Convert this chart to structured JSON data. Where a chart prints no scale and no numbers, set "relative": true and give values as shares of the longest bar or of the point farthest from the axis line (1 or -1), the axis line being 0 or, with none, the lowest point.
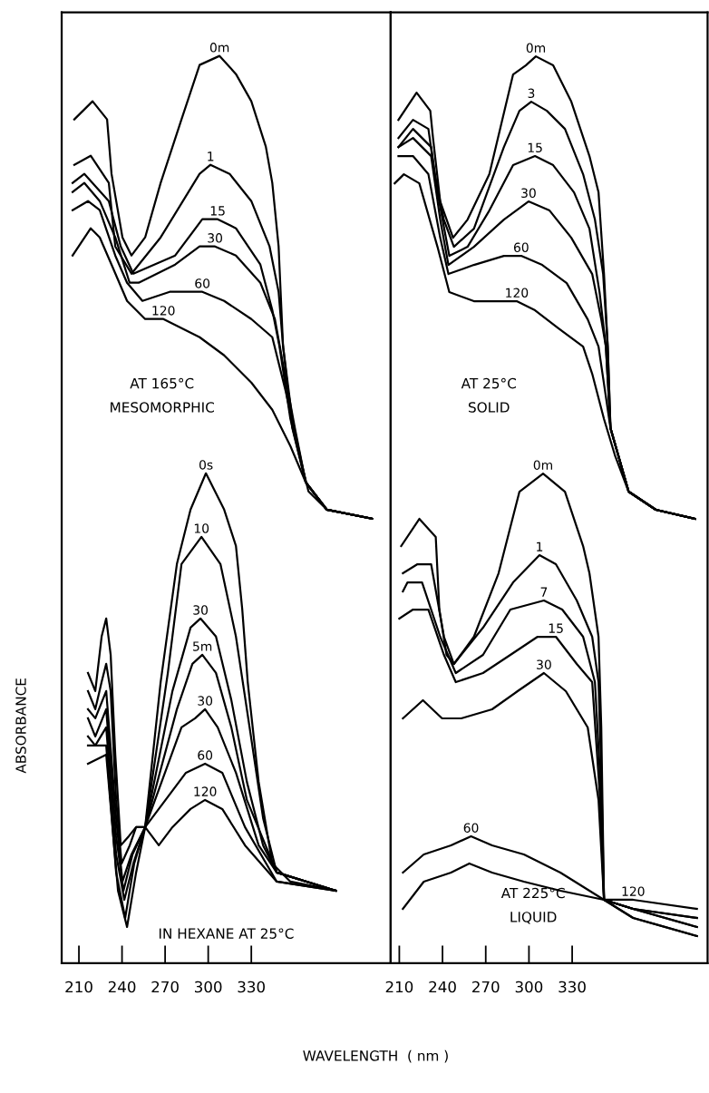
{
  "chart_data": [
    {
      "type": "line",
      "relative": true,
      "ylabel": "ABSORBANCE",
      "xlabel": "WAVELENGTH  ( nm )",
      "xlim": [
        198,
        427
      ],
      "xticks": [
        210,
        240,
        270,
        300,
        330
      ],
      "annotations": [
        "AT 165°C\nMESOMORPHIC",
        "IN HEXANE AT 25°C"
      ],
      "series": [
        {
          "name": "0m",
          "color": "#000000",
          "x": [
            206.8,
            219.5,
            229.6,
            232.7,
            240.3,
            246.6,
            256.1,
            266.9,
            281.4,
            294.0,
            307.9,
            319.3,
            330.0,
            340.1,
            344.6,
            349.0,
            352.1,
            358.5,
            367.9,
            382.5,
            414.0
          ],
          "values": [
            0.93,
            0.95,
            0.93,
            0.87,
            0.8,
            0.78,
            0.8,
            0.86,
            0.93,
            0.99,
            1.0,
            0.98,
            0.95,
            0.9,
            0.86,
            0.79,
            0.68,
            0.6,
            0.53,
            0.5,
            0.49
          ]
        },
        {
          "name": "1",
          "color": "#000000",
          "x": [
            206.8,
            218.2,
            230.8,
            235.3,
            246.6,
            266.9,
            294.0,
            301.6,
            314.9,
            330.0,
            342.7,
            349.0,
            352.1,
            358.5,
            367.9,
            382.5,
            414.0
          ],
          "values": [
            0.88,
            0.89,
            0.86,
            0.79,
            0.76,
            0.8,
            0.87,
            0.88,
            0.87,
            0.84,
            0.79,
            0.74,
            0.68,
            0.59,
            0.53,
            0.5,
            0.49
          ]
        },
        {
          "name": "15",
          "color": "#000000",
          "x": [
            205.6,
            213.8,
            230.8,
            239.1,
            247.9,
            277.0,
            295.9,
            306.6,
            319.3,
            336.3,
            344.6,
            349.6,
            357.2,
            367.9,
            382.5,
            414.0
          ],
          "values": [
            0.86,
            0.87,
            0.84,
            0.79,
            0.76,
            0.78,
            0.82,
            0.82,
            0.81,
            0.77,
            0.72,
            0.68,
            0.6,
            0.53,
            0.5,
            0.49
          ]
        },
        {
          "name": "30",
          "color": "#000000",
          "x": [
            205.6,
            213.8,
            224.5,
            235.3,
            245.3,
            251.6,
            277.0,
            294.0,
            304.7,
            319.3,
            336.3,
            346.4,
            352.1,
            360.3,
            367.9,
            382.5,
            414.0
          ],
          "values": [
            0.85,
            0.86,
            0.84,
            0.8,
            0.75,
            0.75,
            0.77,
            0.79,
            0.79,
            0.78,
            0.75,
            0.71,
            0.66,
            0.59,
            0.53,
            0.5,
            0.49
          ]
        },
        {
          "name": "60",
          "color": "#000000",
          "x": [
            205.6,
            216.3,
            224.5,
            235.3,
            243.5,
            254.2,
            273.2,
            295.9,
            311.1,
            330.0,
            344.6,
            354.0,
            363.5,
            369.8,
            382.5,
            414.0
          ],
          "values": [
            0.83,
            0.84,
            0.83,
            0.78,
            0.75,
            0.73,
            0.74,
            0.74,
            0.73,
            0.71,
            0.69,
            0.63,
            0.56,
            0.52,
            0.5,
            0.49
          ]
        },
        {
          "name": "120",
          "color": "#000000",
          "x": [
            205.6,
            218.2,
            224.5,
            232.7,
            243.5,
            256.1,
            268.8,
            294.0,
            311.1,
            330.0,
            344.6,
            357.2,
            367.9,
            382.5,
            414.0
          ],
          "values": [
            0.78,
            0.81,
            0.8,
            0.77,
            0.73,
            0.71,
            0.71,
            0.69,
            0.67,
            0.64,
            0.61,
            0.57,
            0.53,
            0.5,
            0.49
          ]
        },
        {
          "name": "0s",
          "color": "#000000",
          "x": [
            216.3,
            221.4,
            225.8,
            229.0,
            232.1,
            235.3,
            239.1,
            244.7,
            249.8,
            256.1,
            266.9,
            278.2,
            287.7,
            298.4,
            311.1,
            319.3,
            323.7,
            327.5,
            335.1,
            344.6,
            357.2,
            388.8
          ],
          "values": [
            0.32,
            0.3,
            0.36,
            0.38,
            0.34,
            0.23,
            0.13,
            0.14,
            0.15,
            0.15,
            0.31,
            0.44,
            0.5,
            0.54,
            0.5,
            0.46,
            0.39,
            0.31,
            0.2,
            0.11,
            0.09,
            0.08
          ]
        },
        {
          "name": "10",
          "color": "#000000",
          "x": [
            216.3,
            221.4,
            225.8,
            229.0,
            232.1,
            235.9,
            239.7,
            245.4,
            249.8,
            256.1,
            271.9,
            281.4,
            295.3,
            308.5,
            319.3,
            328.8,
            338.2,
            347.7,
            388.8
          ],
          "values": [
            0.3,
            0.28,
            0.31,
            0.33,
            0.3,
            0.18,
            0.11,
            0.13,
            0.15,
            0.15,
            0.32,
            0.44,
            0.47,
            0.44,
            0.36,
            0.26,
            0.16,
            0.1,
            0.08
          ]
        },
        {
          "name": "30",
          "color": "#000000",
          "x": [
            216.3,
            221.4,
            229.0,
            235.9,
            240.3,
            246.6,
            256.1,
            275.1,
            287.7,
            294.6,
            305.4,
            316.1,
            326.9,
            338.2,
            347.7,
            388.8
          ],
          "values": [
            0.28,
            0.27,
            0.3,
            0.16,
            0.09,
            0.12,
            0.15,
            0.3,
            0.37,
            0.38,
            0.36,
            0.29,
            0.2,
            0.13,
            0.1,
            0.08
          ]
        },
        {
          "name": "5m",
          "color": "#000000",
          "x": [
            216.3,
            221.4,
            229.0,
            235.9,
            241.0,
            247.3,
            256.1,
            278.2,
            289.0,
            295.9,
            305.4,
            316.1,
            326.9,
            347.7,
            388.8
          ],
          "values": [
            0.27,
            0.25,
            0.28,
            0.14,
            0.08,
            0.12,
            0.15,
            0.28,
            0.33,
            0.34,
            0.32,
            0.26,
            0.18,
            0.1,
            0.08
          ]
        },
        {
          "name": "30",
          "color": "#000000",
          "x": [
            216.3,
            221.4,
            229.0,
            235.9,
            241.6,
            247.9,
            256.1,
            281.4,
            290.9,
            297.8,
            306.6,
            319.3,
            335.1,
            347.7,
            388.8
          ],
          "values": [
            0.25,
            0.24,
            0.26,
            0.12,
            0.07,
            0.11,
            0.15,
            0.26,
            0.27,
            0.28,
            0.26,
            0.21,
            0.13,
            0.1,
            0.08
          ]
        },
        {
          "name": "60",
          "color": "#000000",
          "x": [
            216.3,
            229.0,
            235.9,
            242.2,
            248.5,
            256.1,
            284.5,
            297.8,
            309.8,
            325.6,
            347.7,
            388.8
          ],
          "values": [
            0.24,
            0.24,
            0.1,
            0.05,
            0.11,
            0.15,
            0.21,
            0.22,
            0.21,
            0.15,
            0.09,
            0.08
          ]
        },
        {
          "name": "120",
          "color": "#000000",
          "x": [
            216.3,
            229.0,
            237.2,
            243.5,
            249.8,
            256.1,
            265.6,
            275.1,
            287.7,
            297.8,
            309.8,
            325.6,
            347.7,
            388.8
          ],
          "values": [
            0.22,
            0.23,
            0.08,
            0.04,
            0.1,
            0.15,
            0.13,
            0.15,
            0.17,
            0.18,
            0.17,
            0.13,
            0.09,
            0.08
          ]
        }
      ]
    },
    {
      "type": "line",
      "relative": true,
      "xlim": [
        204,
        424
      ],
      "xticks": [
        210,
        240,
        270,
        300,
        330
      ],
      "annotations": [
        "AT 25°C\nSOLID",
        "AT 225°C\nLIQUID"
      ],
      "series": [
        {
          "name": "0m",
          "color": "#000000",
          "x": [
            209.4,
            222.0,
            231.5,
            233.4,
            238.4,
            247.3,
            257.4,
            272.5,
            289.0,
            297.8,
            304.8,
            316.8,
            329.4,
            342.0,
            348.3,
            352.1,
            354.7,
            356.6,
            369.2,
            388.1,
            415.3
          ],
          "values": [
            0.93,
            0.96,
            0.94,
            0.91,
            0.84,
            0.8,
            0.82,
            0.87,
            0.98,
            0.99,
            1.0,
            0.99,
            0.95,
            0.89,
            0.85,
            0.76,
            0.68,
            0.59,
            0.52,
            0.5,
            0.49
          ]
        },
        {
          "name": "3",
          "color": "#000000",
          "x": [
            209.4,
            219.5,
            230.2,
            234.6,
            240.9,
            247.9,
            261.8,
            282.6,
            293.4,
            301.6,
            312.4,
            325.0,
            337.6,
            345.8,
            351.5,
            354.7,
            356.6,
            369.2,
            388.1,
            415.3
          ],
          "values": [
            0.91,
            0.93,
            0.92,
            0.87,
            0.82,
            0.79,
            0.81,
            0.9,
            0.94,
            0.95,
            0.94,
            0.92,
            0.87,
            0.82,
            0.76,
            0.68,
            0.59,
            0.52,
            0.5,
            0.49
          ]
        },
        {
          "name": "15",
          "color": "#000000",
          "x": [
            209.4,
            219.5,
            232.1,
            236.5,
            244.7,
            257.4,
            272.5,
            289.0,
            304.2,
            316.8,
            331.3,
            342.0,
            349.0,
            353.4,
            356.6,
            369.2,
            388.1,
            415.3
          ],
          "values": [
            0.9,
            0.92,
            0.9,
            0.85,
            0.78,
            0.79,
            0.83,
            0.88,
            0.89,
            0.88,
            0.85,
            0.81,
            0.74,
            0.68,
            0.59,
            0.52,
            0.5,
            0.49
          ]
        },
        {
          "name": "30",
          "color": "#000000",
          "x": [
            209.4,
            219.5,
            232.1,
            238.4,
            244.1,
            261.8,
            282.6,
            299.7,
            314.3,
            329.4,
            343.9,
            350.2,
            353.4,
            356.6,
            369.2,
            388.1,
            415.3
          ],
          "values": [
            0.9,
            0.91,
            0.89,
            0.82,
            0.77,
            0.79,
            0.82,
            0.84,
            0.83,
            0.8,
            0.76,
            0.71,
            0.68,
            0.59,
            0.52,
            0.5,
            0.49
          ]
        },
        {
          "name": "60",
          "color": "#000000",
          "x": [
            209.4,
            219.5,
            230.2,
            238.4,
            244.1,
            261.8,
            282.6,
            294.6,
            309.2,
            326.2,
            340.8,
            348.3,
            356.6,
            369.2,
            388.1,
            415.3
          ],
          "values": [
            0.89,
            0.89,
            0.87,
            0.8,
            0.76,
            0.77,
            0.78,
            0.78,
            0.77,
            0.75,
            0.71,
            0.68,
            0.59,
            0.52,
            0.5,
            0.49
          ]
        },
        {
          "name": "120",
          "color": "#000000",
          "x": [
            206.8,
            213.2,
            223.9,
            236.5,
            244.7,
            261.8,
            272.5,
            291.5,
            304.2,
            320.6,
            337.6,
            343.9,
            352.1,
            359.7,
            369.2,
            388.1,
            415.3
          ],
          "values": [
            0.86,
            0.87,
            0.86,
            0.79,
            0.74,
            0.73,
            0.73,
            0.73,
            0.72,
            0.7,
            0.68,
            0.65,
            0.6,
            0.56,
            0.52,
            0.5,
            0.49
          ]
        },
        {
          "name": "0m",
          "color": "#000000",
          "x": [
            211.3,
            223.9,
            235.3,
            237.8,
            242.8,
            247.9,
            261.8,
            278.9,
            293.4,
            309.8,
            325.0,
            337.6,
            342.0,
            348.3,
            350.2,
            352.1,
            372.3,
            416.6
          ],
          "values": [
            0.46,
            0.49,
            0.47,
            0.39,
            0.34,
            0.33,
            0.36,
            0.43,
            0.52,
            0.54,
            0.52,
            0.46,
            0.43,
            0.36,
            0.26,
            0.07,
            0.05,
            0.03
          ]
        },
        {
          "name": "1",
          "color": "#000000",
          "x": [
            212.5,
            222.6,
            232.1,
            241.0,
            247.9,
            268.1,
            289.0,
            307.3,
            318.7,
            333.2,
            343.9,
            348.3,
            350.2,
            352.1,
            372.3,
            416.6
          ],
          "values": [
            0.43,
            0.44,
            0.44,
            0.36,
            0.33,
            0.37,
            0.42,
            0.45,
            0.44,
            0.4,
            0.36,
            0.31,
            0.21,
            0.07,
            0.05,
            0.03
          ]
        },
        {
          "name": "7",
          "color": "#000000",
          "x": [
            212.5,
            215.7,
            225.8,
            238.4,
            249.2,
            268.1,
            287.1,
            310.4,
            323.1,
            337.6,
            345.8,
            349.6,
            352.1,
            372.3,
            416.6
          ],
          "values": [
            0.41,
            0.42,
            0.42,
            0.36,
            0.32,
            0.34,
            0.39,
            0.4,
            0.39,
            0.36,
            0.31,
            0.2,
            0.07,
            0.06,
            0.04
          ]
        },
        {
          "name": "15",
          "color": "#000000",
          "x": [
            210.0,
            219.5,
            230.2,
            241.0,
            249.2,
            268.1,
            287.1,
            306.0,
            318.7,
            333.2,
            343.9,
            349.0,
            352.1,
            372.3,
            416.6
          ],
          "values": [
            0.38,
            0.39,
            0.39,
            0.34,
            0.31,
            0.32,
            0.34,
            0.36,
            0.36,
            0.33,
            0.31,
            0.19,
            0.07,
            0.06,
            0.04
          ]
        },
        {
          "name": "30",
          "color": "#000000",
          "x": [
            212.5,
            226.4,
            239.7,
            253.0,
            274.4,
            292.1,
            310.4,
            325.6,
            340.8,
            348.3,
            352.1,
            372.3,
            416.6
          ],
          "values": [
            0.27,
            0.29,
            0.27,
            0.27,
            0.28,
            0.3,
            0.32,
            0.3,
            0.26,
            0.18,
            0.07,
            0.06,
            0.05
          ]
        },
        {
          "name": "60",
          "color": "#000000",
          "x": [
            212.5,
            227.0,
            245.9,
            259.8,
            274.4,
            296.5,
            321.8,
            352.1,
            372.3,
            416.6
          ],
          "values": [
            0.1,
            0.12,
            0.13,
            0.14,
            0.13,
            0.12,
            0.1,
            0.07,
            0.06,
            0.05
          ]
        },
        {
          "name": "120",
          "color": "#000000",
          "x": [
            212.5,
            227.0,
            245.9,
            258.6,
            274.4,
            296.5,
            321.8,
            352.1,
            372.3,
            416.6
          ],
          "values": [
            0.06,
            0.09,
            0.1,
            0.11,
            0.1,
            0.09,
            0.08,
            0.07,
            0.07,
            0.06
          ]
        }
      ]
    }
  ]
}
